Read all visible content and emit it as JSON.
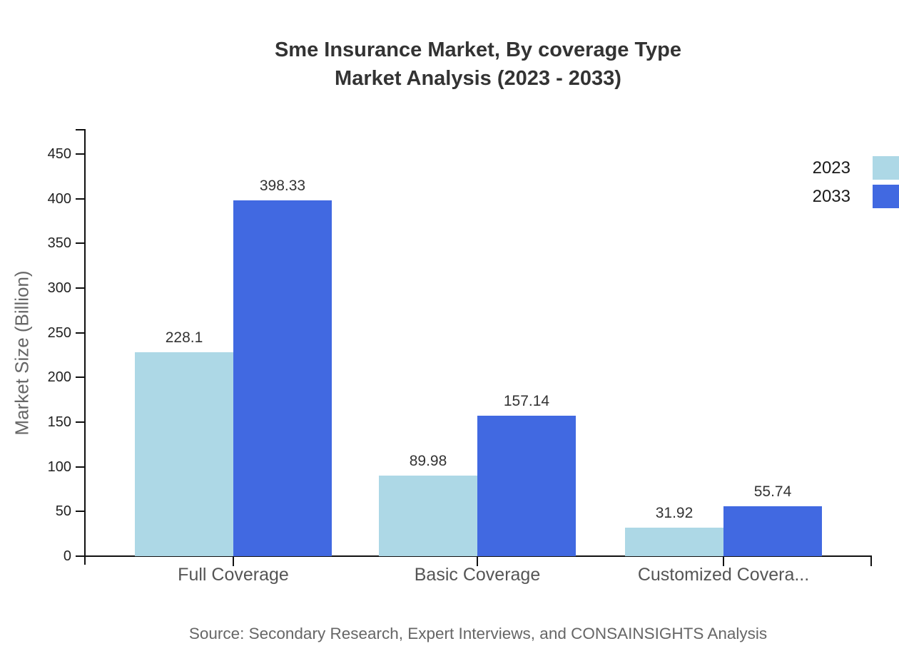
{
  "title": {
    "line1": "Sme Insurance Market, By coverage Type",
    "line2": "Market Analysis (2023 - 2033)"
  },
  "chart_data": {
    "type": "bar",
    "categories": [
      "Full Coverage",
      "Basic Coverage",
      "Customized Covera..."
    ],
    "series": [
      {
        "name": "2023",
        "color": "#ADD8E6",
        "values": [
          228.1,
          89.98,
          31.92
        ]
      },
      {
        "name": "2033",
        "color": "#4169E1",
        "values": [
          398.33,
          157.14,
          55.74
        ]
      }
    ],
    "xlabel": "",
    "ylabel": "Market Size (Billion)",
    "ylim": [
      0,
      450
    ],
    "yticks": [
      0,
      50,
      100,
      150,
      200,
      250,
      300,
      350,
      400,
      450
    ],
    "grid": false,
    "value_labels": true,
    "legend_position": "top-right"
  },
  "legend": {
    "items": [
      {
        "label": "2023",
        "color": "#ADD8E6"
      },
      {
        "label": "2033",
        "color": "#4169E1"
      }
    ]
  },
  "source": "Source: Secondary Research, Expert Interviews, and CONSAINSIGHTS Analysis",
  "colors": {
    "background": "#ffffff",
    "title": "#333333",
    "axis": "#111111",
    "tick_label": "#222222",
    "value_label": "#333333",
    "category_label": "#555555",
    "ylabel": "#666666",
    "source": "#666666"
  }
}
